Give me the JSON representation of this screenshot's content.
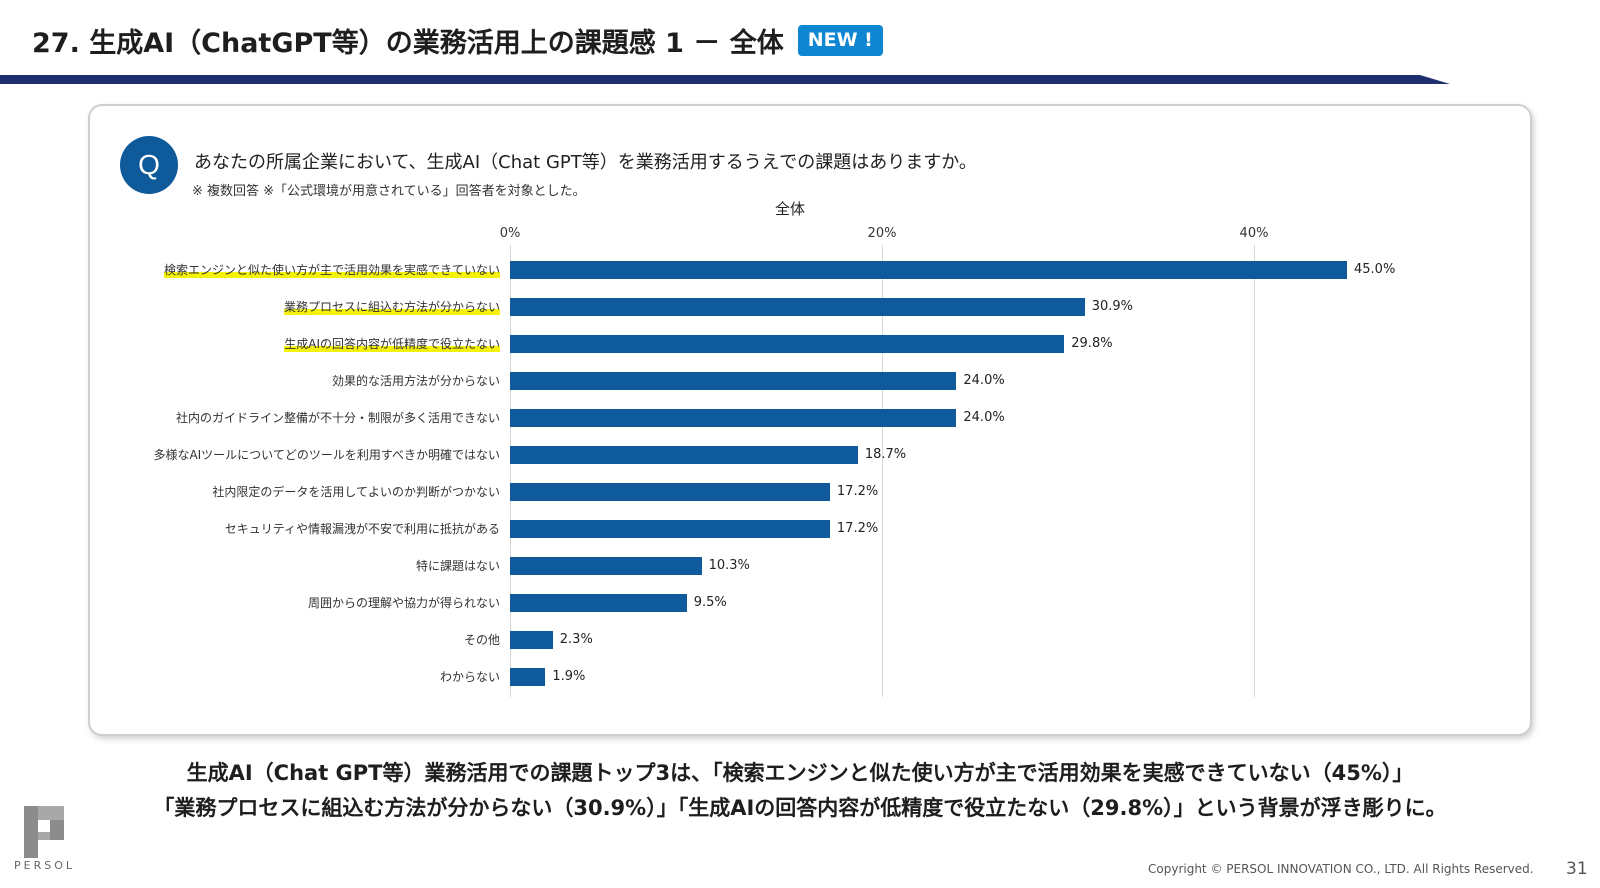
{
  "header": {
    "title": "27. 生成AI（ChatGPT等）の業務活用上の課題感 1 － 全体",
    "badge": "NEW !"
  },
  "question": {
    "mark": "Q",
    "text": "あなたの所属企業において、生成AI（Chat GPT等）を業務活用するうえでの課題はありますか。",
    "note": "※ 複数回答 ※「公式環境が用意されている」回答者を対象とした。"
  },
  "chart_data": {
    "type": "bar",
    "orientation": "horizontal",
    "title": "全体",
    "x_ticks": [
      "0%",
      "20%",
      "40%"
    ],
    "xlim": [
      0,
      50
    ],
    "grid": true,
    "categories": [
      "検索エンジンと似た使い方が主で活用効果を実感できていない",
      "業務プロセスに組込む方法が分からない",
      "生成AIの回答内容が低精度で役立たない",
      "効果的な活用方法が分からない",
      "社内のガイドライン整備が不十分・制限が多く活用できない",
      "多様なAIツールについてどのツールを利用すべきか明確ではない",
      "社内限定のデータを活用してよいのか判断がつかない",
      "セキュリティや情報漏洩が不安で利用に抵抗がある",
      "特に課題はない",
      "周囲からの理解や協力が得られない",
      "その他",
      "わからない"
    ],
    "values": [
      45.0,
      30.9,
      29.8,
      24.0,
      24.0,
      18.7,
      17.2,
      17.2,
      10.3,
      9.5,
      2.3,
      1.9
    ],
    "value_labels": [
      "45.0%",
      "30.9%",
      "29.8%",
      "24.0%",
      "24.0%",
      "18.7%",
      "17.2%",
      "17.2%",
      "10.3%",
      "9.5%",
      "2.3%",
      "1.9%"
    ],
    "highlighted": [
      0,
      1,
      2
    ],
    "bar_color": "#0e5a9a",
    "highlight_color": "#f4f10a"
  },
  "summary": {
    "line1": "生成AI（Chat GPT等）業務活用での課題トップ3は、「検索エンジンと似た使い方が主で活用効果を実感できていない（45%）」",
    "line2": "「業務プロセスに組込む方法が分からない（30.9%）」「生成AIの回答内容が低精度で役立たない（29.8%）」という背景が浮き彫りに。"
  },
  "footer": {
    "logo_text": "PERSOL",
    "copyright": "Copyright © PERSOL INNOVATION CO., LTD. All Rights Reserved.",
    "page_number": "31"
  },
  "colors": {
    "accent": "#0e5a9a",
    "badge": "#0f86d2",
    "title_bar": "#1f2f6d"
  }
}
